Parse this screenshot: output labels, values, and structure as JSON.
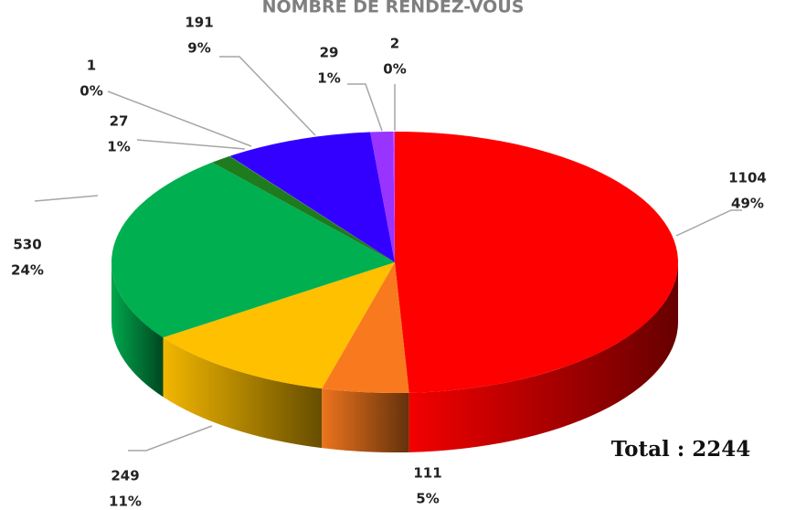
{
  "chart_data": {
    "type": "pie3d",
    "title": "NOMBRE DE RENDEZ-VOUS",
    "values": [
      1104,
      111,
      249,
      530,
      27,
      1,
      191,
      29,
      2
    ],
    "percent_labels": [
      "49%",
      "5%",
      "11%",
      "24%",
      "1%",
      "0%",
      "9%",
      "1%",
      "0%"
    ],
    "colors": [
      "#ff0000",
      "#f97a1e",
      "#ffc000",
      "#00b050",
      "#1e7b1e",
      "#2e8b3a",
      "#3300ff",
      "#9933ff",
      "#cc44ff"
    ],
    "annotation": "Total : 2244"
  }
}
